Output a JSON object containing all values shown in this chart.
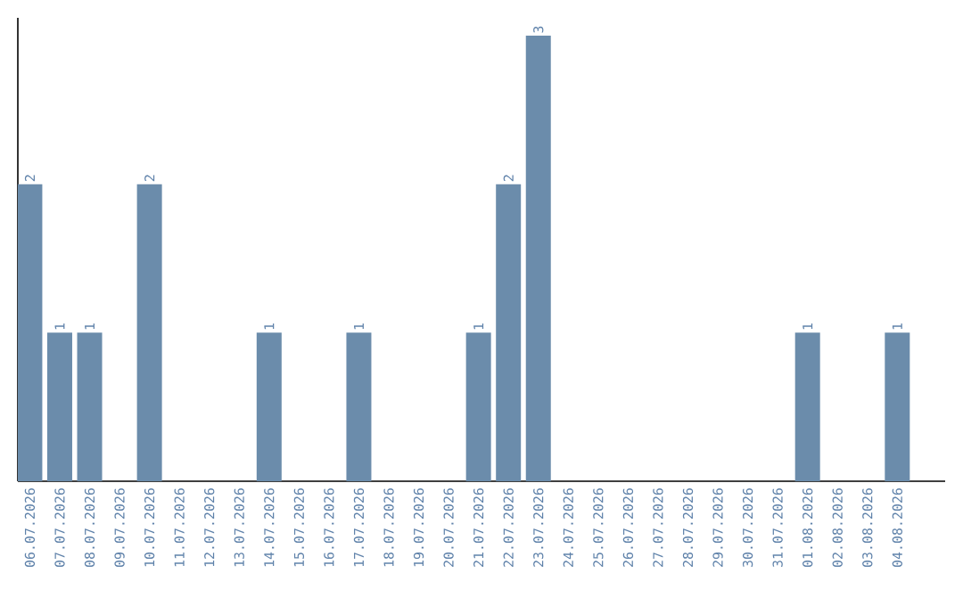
{
  "chart_data": {
    "type": "bar",
    "categories": [
      "06.07.2026",
      "07.07.2026",
      "08.07.2026",
      "09.07.2026",
      "10.07.2026",
      "11.07.2026",
      "12.07.2026",
      "13.07.2026",
      "14.07.2026",
      "15.07.2026",
      "16.07.2026",
      "17.07.2026",
      "18.07.2026",
      "19.07.2026",
      "20.07.2026",
      "21.07.2026",
      "22.07.2026",
      "23.07.2026",
      "24.07.2026",
      "25.07.2026",
      "26.07.2026",
      "27.07.2026",
      "28.07.2026",
      "29.07.2026",
      "30.07.2026",
      "31.07.2026",
      "01.08.2026",
      "02.08.2026",
      "03.08.2026",
      "04.08.2026"
    ],
    "values": [
      2,
      1,
      1,
      0,
      2,
      0,
      0,
      0,
      1,
      0,
      0,
      1,
      0,
      0,
      0,
      1,
      2,
      3,
      0,
      0,
      0,
      0,
      0,
      0,
      0,
      0,
      1,
      0,
      0,
      1
    ],
    "value_labels": [
      "2",
      "1",
      "1",
      null,
      "2",
      null,
      null,
      null,
      "1",
      null,
      null,
      "1",
      null,
      null,
      null,
      "1",
      "2",
      "3",
      null,
      null,
      null,
      null,
      null,
      null,
      null,
      null,
      "1",
      null,
      null,
      "1"
    ],
    "color": "#6b8cab",
    "ylim": [
      0,
      3.12
    ],
    "tick_labels": "x"
  }
}
